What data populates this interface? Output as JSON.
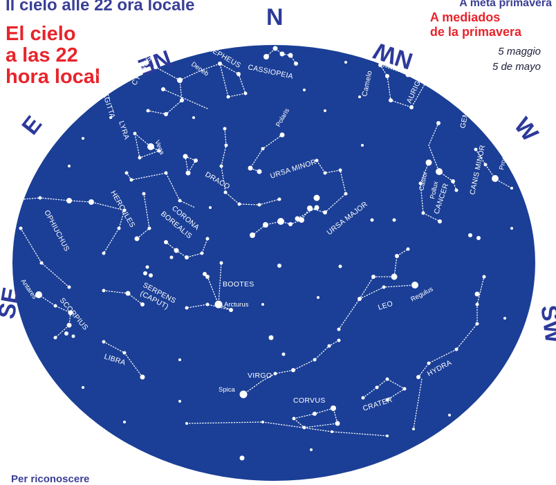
{
  "header": {
    "title_it": "Il cielo alle 22 ora locale",
    "title_es_line1": "El cielo",
    "title_es_line2": "a las 22",
    "title_es_line3": "hora local",
    "season_it": "A metà primavera",
    "season_es_line1": "A mediados",
    "season_es_line2": "de la primavera",
    "date_it": "5 maggio",
    "date_es": "5 de mayo"
  },
  "directions": {
    "n": "N",
    "ne": "NE",
    "e": "E",
    "se": "SE",
    "sw": "SW",
    "w": "W",
    "nw": "NW"
  },
  "constellations": {
    "sagitta": "SAGITTA",
    "cygnus": "CYGNUS",
    "cepheus": "CEPHEUS",
    "cassiopeia": "CASSIOPEIA",
    "camelopardalis": "Camelo",
    "auriga": "AURIGA",
    "gemini": "GEMINI",
    "lyra": "LYRA",
    "draco": "DRACO",
    "ursa_minor": "URSA MINOR",
    "canis_minor": "CANIS MINOR",
    "cancer": "CANCER",
    "hercules": "HERCULES",
    "corona_borealis_1": "CORONA",
    "corona_borealis_2": "BOREALIS",
    "ursa_major": "URSA MAJOR",
    "ophiuchus": "OPHIUCHUS",
    "bootes": "BOOTES",
    "serpens_1": "SERPENS",
    "serpens_2": "(CAPUT)",
    "leo": "LEO",
    "scorpius": "SCORPIUS",
    "libra": "LIBRA",
    "virgo": "VIRGO",
    "hydra": "HYDRA",
    "corvus": "CORVUS",
    "crater": "CRATER"
  },
  "stars": {
    "deneb": "Deneb",
    "polaris": "Polaris",
    "vega": "Vega",
    "castor": "Castor",
    "pollux": "Pollux",
    "procyon": "Procyon",
    "arcturus": "Arcturus",
    "regulus": "Regulus",
    "antares": "Antares",
    "spica": "Spica"
  },
  "footer": {
    "text": "Per riconoscere"
  },
  "colors": {
    "sky": "#1b3f96",
    "compass": "#2d3a9a",
    "title_it": "#3a3f96",
    "title_es": "#e8242b",
    "star": "#ffffff"
  }
}
